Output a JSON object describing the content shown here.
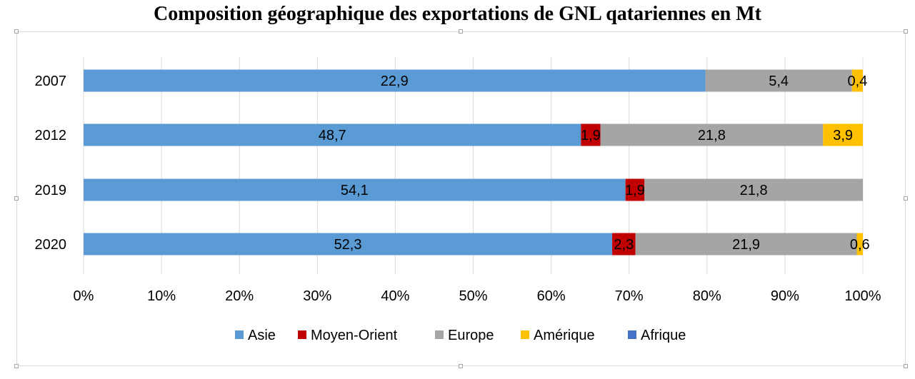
{
  "chart_data": {
    "type": "bar",
    "orientation": "horizontal",
    "stacked": "percent",
    "title": "Composition géographique des exportations de GNL qatariennes en Mt",
    "xlabel": "",
    "ylabel": "",
    "categories": [
      "2007",
      "2012",
      "2019",
      "2020"
    ],
    "series": [
      {
        "name": "Asie",
        "color": "#5b9bd5",
        "values": [
          22.9,
          48.7,
          54.1,
          52.3
        ],
        "labels": [
          "22,9",
          "48,7",
          "54,1",
          "52,3"
        ]
      },
      {
        "name": "Moyen-Orient",
        "color": "#c00000",
        "values": [
          0,
          1.9,
          1.9,
          2.3
        ],
        "labels": [
          "",
          "1,9",
          "1,9",
          "2,3"
        ]
      },
      {
        "name": "Europe",
        "color": "#a5a5a5",
        "values": [
          5.4,
          21.8,
          21.8,
          21.9
        ],
        "labels": [
          "5,4",
          "21,8",
          "21,8",
          "21,9"
        ]
      },
      {
        "name": "Amérique",
        "color": "#ffc000",
        "values": [
          0.4,
          3.9,
          0,
          0.6
        ],
        "labels": [
          "0,4",
          "3,9",
          "",
          "0,6"
        ]
      },
      {
        "name": "Afrique",
        "color": "#4472c4",
        "values": [
          0,
          0,
          0,
          0
        ],
        "labels": [
          "",
          "",
          "",
          ""
        ]
      }
    ],
    "xlim": [
      0,
      100
    ],
    "xticks": [
      "0%",
      "10%",
      "20%",
      "30%",
      "40%",
      "50%",
      "60%",
      "70%",
      "80%",
      "90%",
      "100%"
    ],
    "grid": true,
    "legend": "bottom"
  }
}
